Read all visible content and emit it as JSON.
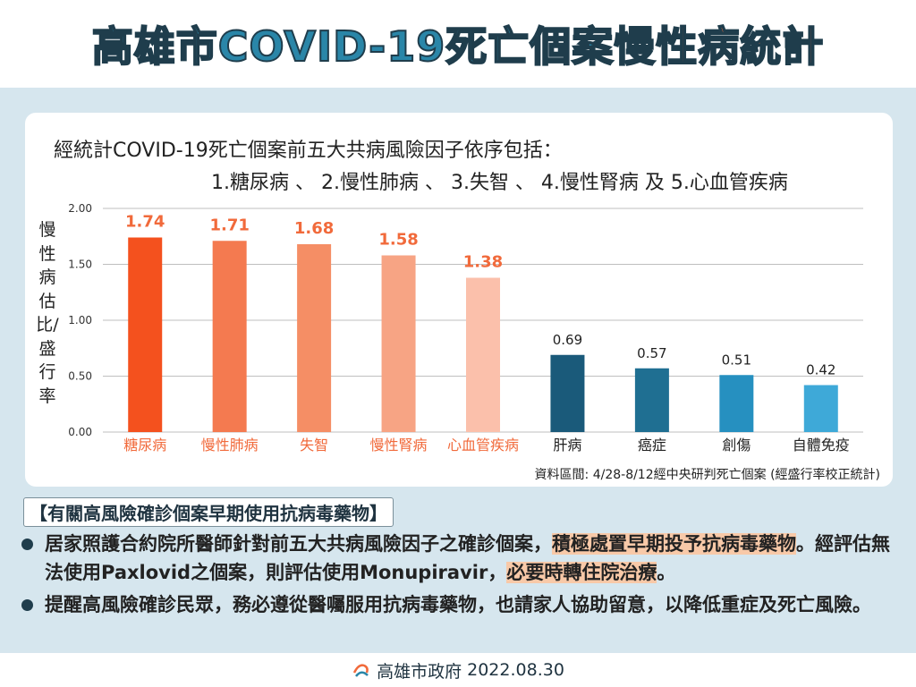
{
  "header": {
    "title_main": "高雄市COVID-19死亡個案",
    "title_accent": "慢性病統計"
  },
  "intro": {
    "line1": "經統計COVID-19死亡個案前五大共病風險因子依序包括：",
    "line2": "1.糖尿病 、 2.慢性肺病 、 3.失智 、 4.慢性腎病 及 5.心血管疾病"
  },
  "chart_data": {
    "type": "bar",
    "ylabel": "慢性病估比/盛行率",
    "ylim": [
      0,
      2.0
    ],
    "yticks": [
      "0.00",
      "0.50",
      "1.00",
      "1.50",
      "2.00"
    ],
    "grid": true,
    "categories": [
      "糖尿病",
      "慢性肺病",
      "失智",
      "慢性腎病",
      "心血管疾病",
      "肝病",
      "癌症",
      "創傷",
      "自體免疫"
    ],
    "values": [
      1.74,
      1.71,
      1.68,
      1.58,
      1.38,
      0.69,
      0.57,
      0.51,
      0.42
    ],
    "value_labels": [
      "1.74",
      "1.71",
      "1.68",
      "1.58",
      "1.38",
      "0.69",
      "0.57",
      "0.51",
      "0.42"
    ],
    "colors": [
      "#f4511e",
      "#f47a50",
      "#f58e65",
      "#f7a484",
      "#fbc0ab",
      "#1a5a7a",
      "#1f6f92",
      "#2690c0",
      "#3ea9d8"
    ],
    "label_color_top5": "#f16a3b",
    "label_color_rest": "#222222",
    "source": "資料區間: 4/28-8/12經中央研判死亡個案 (經盛行率校正統計)"
  },
  "notes": {
    "heading": "【有關高風險確診個案早期使用抗病毒藥物】",
    "item1_a": "居家照護合約院所醫師針對前五大共病風險因子之確診個案，",
    "item1_hl1": "積極處置早期投予抗病毒藥物",
    "item1_b": "。經評估無法使用Paxlovid之個案，則評估使用Monupiravir，",
    "item1_hl2": "必要時轉住院治療",
    "item1_c": "。",
    "item2": "提醒高風險確診民眾，務必遵從醫囑服用抗病毒藥物，也請家人協助留意，以降低重症及死亡風險。"
  },
  "footer": {
    "org": "高雄市政府",
    "date": "2022.08.30"
  }
}
